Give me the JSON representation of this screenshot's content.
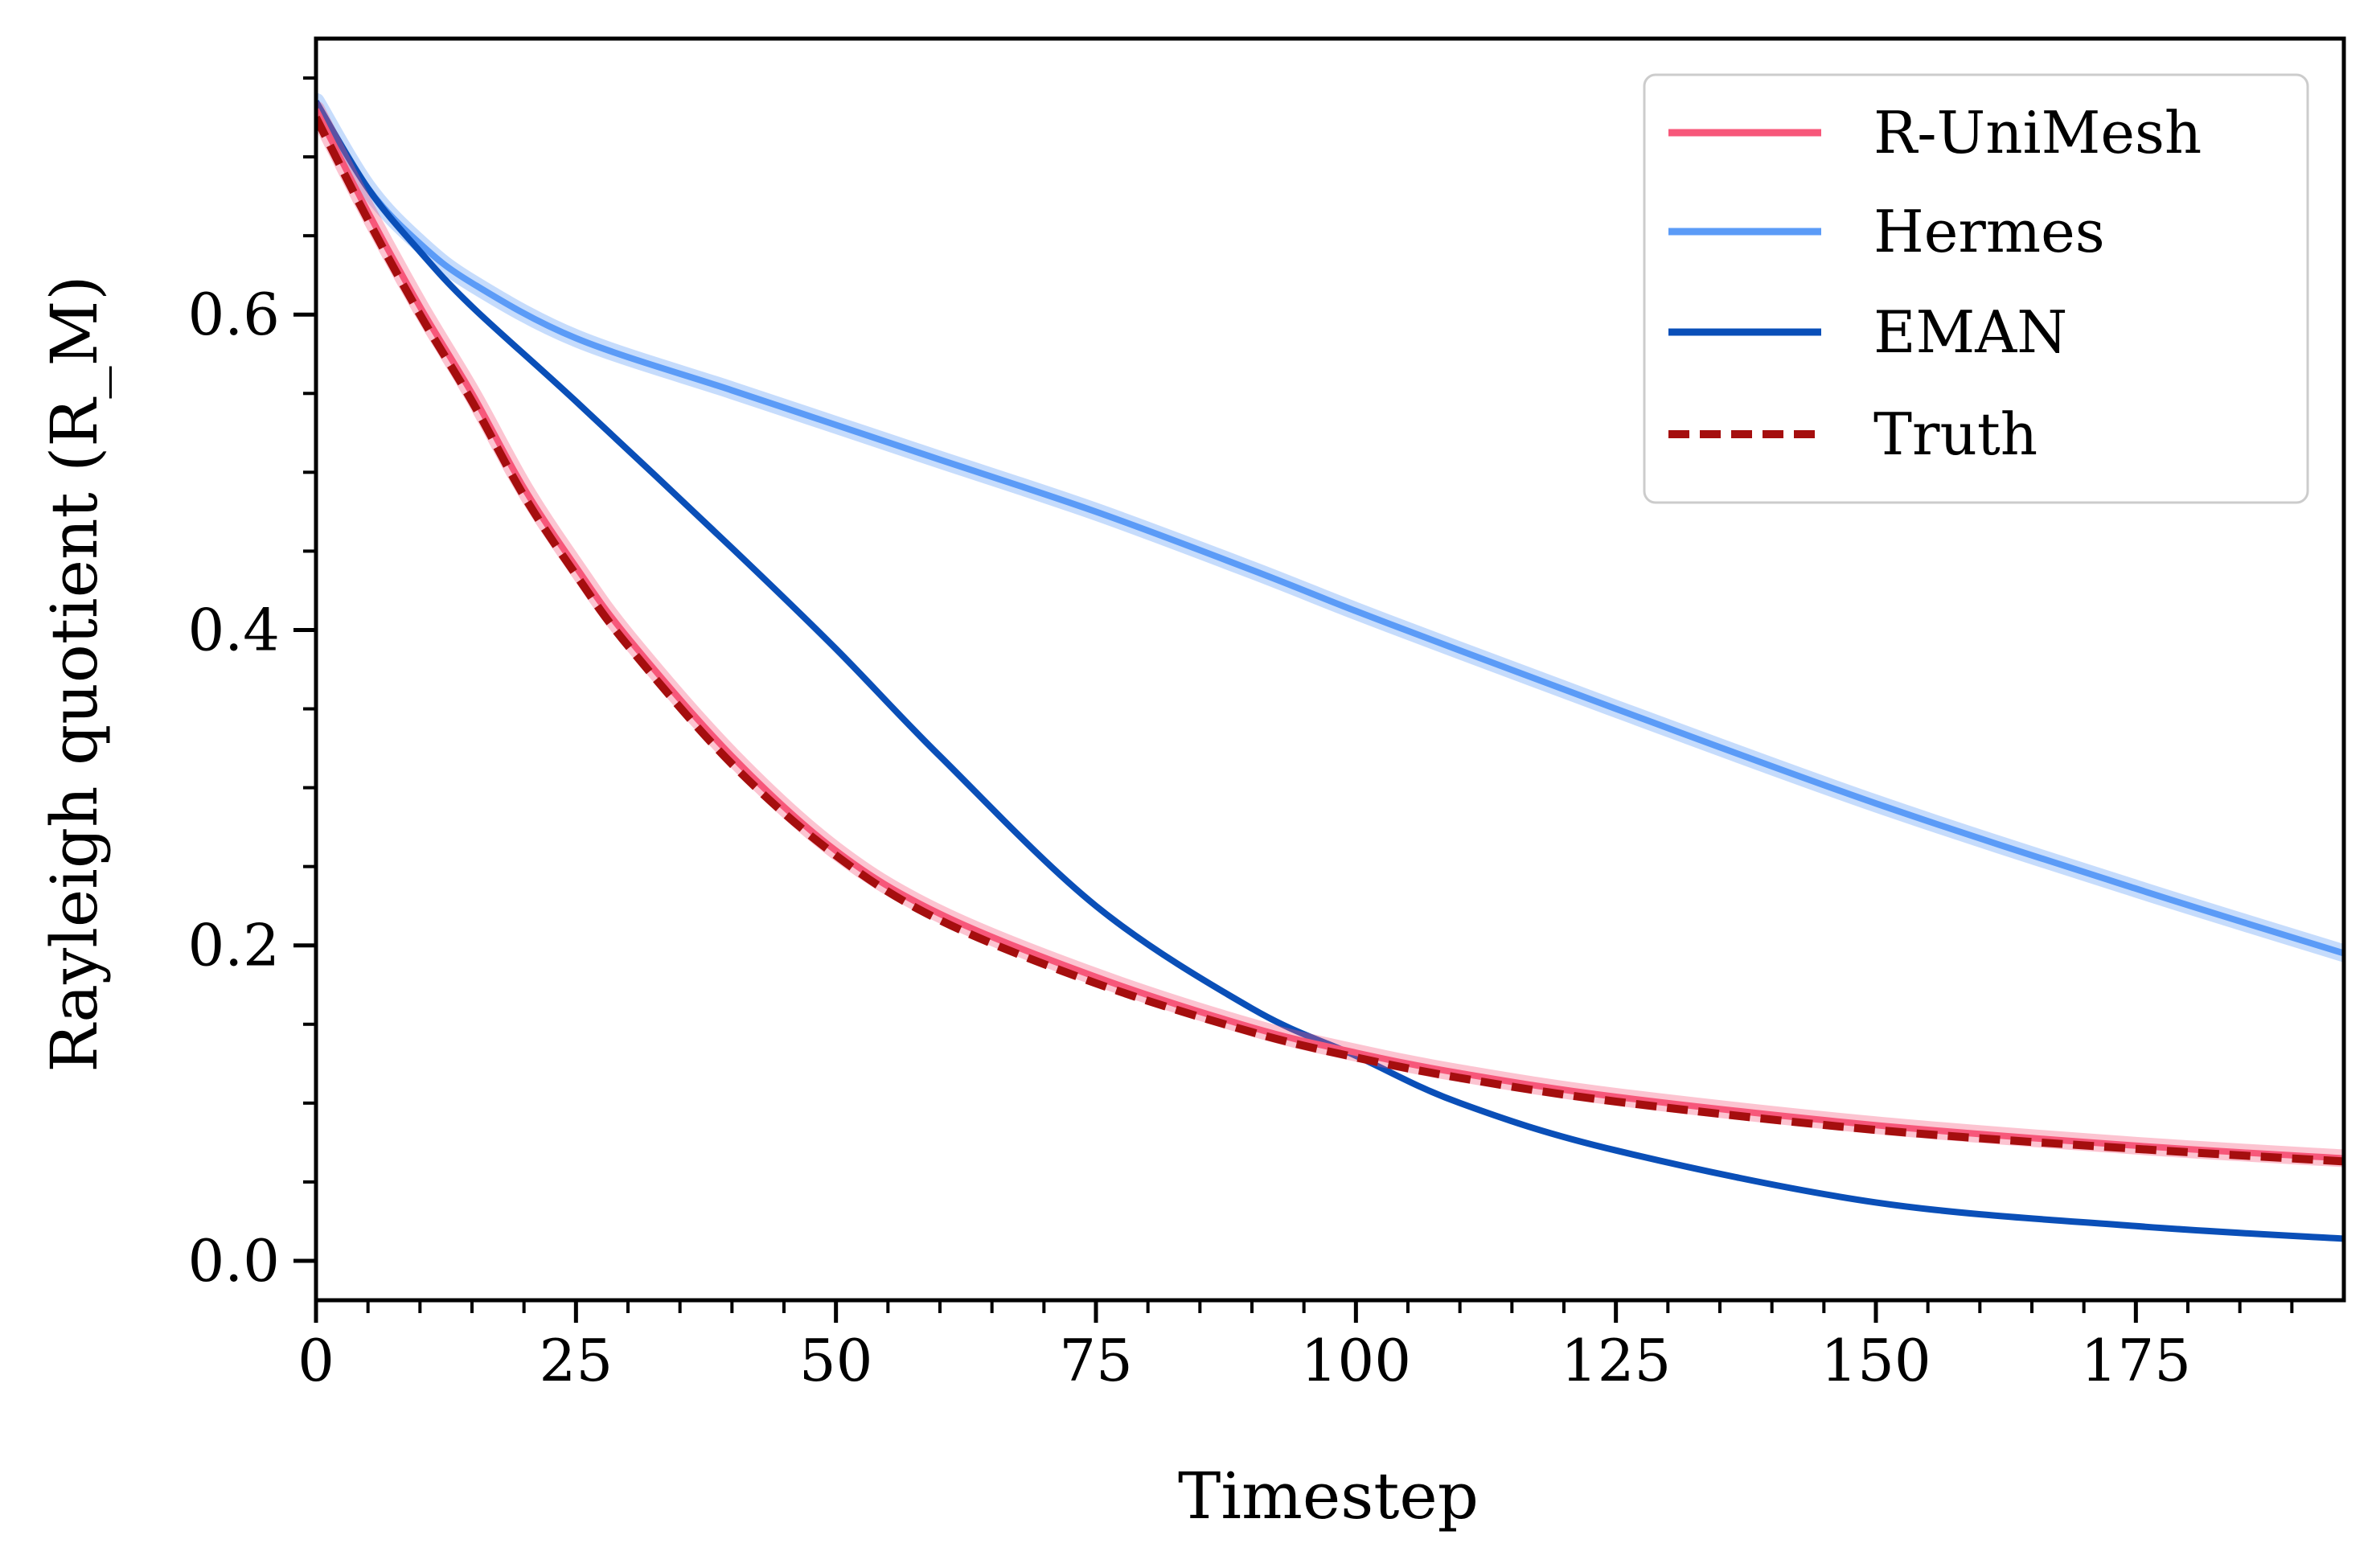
{
  "chart_data": {
    "type": "line",
    "title": "",
    "xlabel": "Timestep",
    "ylabel": "Rayleigh quotient (R_M)",
    "xlim": [
      0,
      195
    ],
    "ylim": [
      -0.025,
      0.775
    ],
    "x_ticks": [
      0,
      25,
      50,
      75,
      100,
      125,
      150,
      175
    ],
    "x_tick_labels": [
      "0",
      "25",
      "50",
      "75",
      "100",
      "125",
      "150",
      "175"
    ],
    "y_ticks": [
      0.0,
      0.2,
      0.4,
      0.6
    ],
    "y_tick_labels": [
      "0.0",
      "0.2",
      "0.4",
      "0.6"
    ],
    "legend_position": "top-right",
    "series": [
      {
        "name": "R-UniMesh",
        "color": "#f7577a",
        "style": "solid",
        "band": true,
        "x": [
          0,
          5,
          10,
          15,
          20,
          25,
          30,
          40,
          50,
          60,
          75,
          90,
          100,
          110,
          125,
          150,
          175,
          195
        ],
        "y": [
          0.73,
          0.665,
          0.605,
          0.55,
          0.49,
          0.44,
          0.395,
          0.32,
          0.26,
          0.22,
          0.18,
          0.148,
          0.132,
          0.119,
          0.104,
          0.086,
          0.073,
          0.065
        ]
      },
      {
        "name": "Hermes",
        "color": "#5b9bf7",
        "style": "solid",
        "band": true,
        "x": [
          0,
          5,
          10,
          15,
          25,
          40,
          50,
          60,
          75,
          90,
          100,
          110,
          125,
          150,
          175,
          195
        ],
        "y": [
          0.735,
          0.68,
          0.645,
          0.62,
          0.585,
          0.552,
          0.53,
          0.508,
          0.475,
          0.438,
          0.412,
          0.387,
          0.35,
          0.29,
          0.236,
          0.195
        ]
      },
      {
        "name": "EMAN",
        "color": "#0a4fb8",
        "style": "solid",
        "band": false,
        "x": [
          0,
          5,
          10,
          15,
          25,
          40,
          50,
          60,
          75,
          90,
          100,
          110,
          125,
          150,
          175,
          195
        ],
        "y": [
          0.735,
          0.68,
          0.64,
          0.605,
          0.545,
          0.452,
          0.388,
          0.32,
          0.225,
          0.16,
          0.13,
          0.1,
          0.07,
          0.037,
          0.022,
          0.014
        ]
      },
      {
        "name": "Truth",
        "color": "#a50e0e",
        "style": "dashed",
        "band": false,
        "x": [
          0,
          5,
          10,
          15,
          20,
          25,
          30,
          40,
          50,
          60,
          75,
          90,
          100,
          110,
          125,
          150,
          175,
          195
        ],
        "y": [
          0.725,
          0.66,
          0.6,
          0.545,
          0.485,
          0.435,
          0.39,
          0.315,
          0.257,
          0.216,
          0.176,
          0.145,
          0.129,
          0.116,
          0.101,
          0.083,
          0.071,
          0.063
        ]
      }
    ],
    "legend": [
      "R-UniMesh",
      "Hermes",
      "EMAN",
      "Truth"
    ]
  }
}
